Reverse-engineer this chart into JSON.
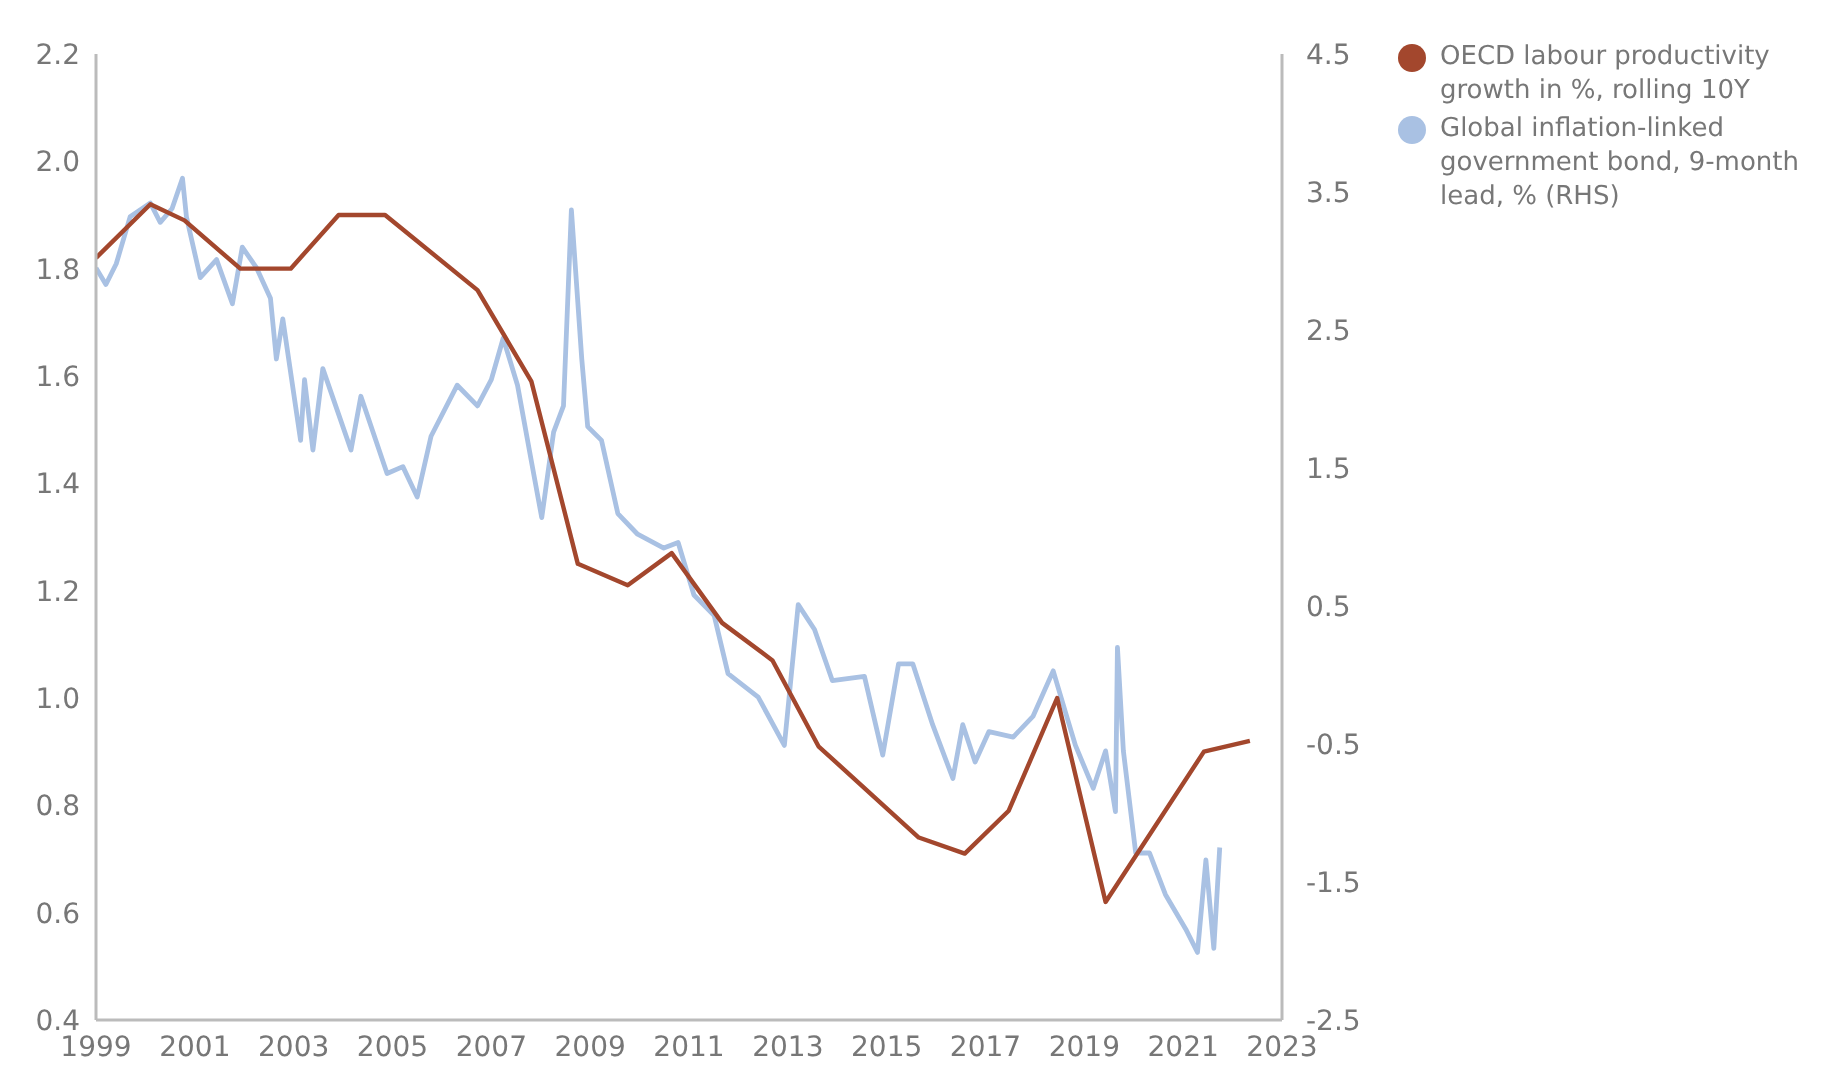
{
  "chart_data": {
    "type": "line",
    "xlim": [
      1999,
      2023
    ],
    "xticks": [
      1999,
      2001,
      2003,
      2005,
      2007,
      2009,
      2011,
      2013,
      2015,
      2017,
      2019,
      2021,
      2023
    ],
    "ylim": [
      0.4,
      2.2
    ],
    "yticks": [
      0.4,
      0.6,
      0.8,
      {
        "value": 1,
        "label": "1.0"
      },
      1.2,
      1.4,
      1.6,
      1.8,
      {
        "value": 2,
        "label": "2.0"
      },
      2.2
    ],
    "y2lim": [
      -2.5,
      4.5
    ],
    "y2ticks": [
      -2.5,
      -1.5,
      -0.5,
      0.5,
      1.5,
      2.5,
      3.5,
      4.5
    ],
    "grid": false,
    "legend": "top right",
    "marker": "none",
    "series": [
      {
        "name": "OECD labour productivity growth in %, rolling 10Y",
        "color": "#a3472d",
        "x": [
          1999.0,
          2000.1,
          2000.79,
          2001.92,
          2002.94,
          2003.91,
          2004.85,
          2006.72,
          2007.81,
          2008.75,
          2009.76,
          2010.65,
          2011.67,
          2012.69,
          2013.62,
          2015.65,
          2016.58,
          2017.47,
          2018.45,
          2019.43,
          2021.42,
          2022.35
        ],
        "values": [
          1.82,
          1.92,
          1.89,
          1.8,
          1.8,
          1.9,
          1.9,
          1.76,
          1.59,
          1.25,
          1.21,
          1.27,
          1.14,
          1.07,
          0.91,
          0.74,
          0.71,
          0.79,
          1.0,
          0.62,
          0.9,
          0.92
        ]
      },
      {
        "name": "Global inflation-linked government bond, 9-month lead, % (RHS)",
        "color": "#a9c1e3",
        "axis": "y2",
        "x": [
          1999.0,
          1999.2,
          1999.41,
          1999.69,
          2000.1,
          2000.3,
          2000.54,
          2000.75,
          2000.83,
          2001.11,
          2001.44,
          2001.76,
          2001.96,
          2002.25,
          2002.53,
          2002.65,
          2002.78,
          2003.14,
          2003.22,
          2003.39,
          2003.59,
          2004.16,
          2004.36,
          2004.89,
          2005.21,
          2005.5,
          2005.78,
          2006.31,
          2006.72,
          2007.0,
          2007.24,
          2007.53,
          2007.81,
          2008.02,
          2008.26,
          2008.46,
          2008.62,
          2008.83,
          2008.95,
          2009.23,
          2009.56,
          2009.96,
          2010.49,
          2010.78,
          2011.1,
          2011.51,
          2011.79,
          2012.4,
          2012.93,
          2013.21,
          2013.54,
          2013.9,
          2014.55,
          2014.92,
          2015.24,
          2015.53,
          2015.93,
          2016.34,
          2016.54,
          2016.79,
          2017.07,
          2017.56,
          2017.96,
          2018.37,
          2018.61,
          2018.82,
          2019.18,
          2019.43,
          2019.63,
          2019.67,
          2019.79,
          2020.04,
          2020.32,
          2020.64,
          2021.05,
          2021.29,
          2021.46,
          2021.62,
          2021.74
        ],
        "values": [
          2.95,
          2.83,
          2.98,
          3.32,
          3.42,
          3.28,
          3.38,
          3.6,
          3.32,
          2.88,
          3.01,
          2.69,
          3.1,
          2.95,
          2.73,
          2.29,
          2.58,
          1.7,
          2.14,
          1.63,
          2.22,
          1.63,
          2.02,
          1.46,
          1.51,
          1.29,
          1.73,
          2.1,
          1.95,
          2.14,
          2.44,
          2.1,
          1.55,
          1.14,
          1.76,
          1.95,
          3.37,
          2.29,
          1.8,
          1.7,
          1.17,
          1.02,
          0.92,
          0.96,
          0.58,
          0.43,
          0.01,
          -0.16,
          -0.51,
          0.51,
          0.33,
          -0.04,
          -0.01,
          -0.58,
          0.08,
          0.08,
          -0.36,
          -0.75,
          -0.36,
          -0.63,
          -0.41,
          -0.45,
          -0.3,
          0.03,
          -0.26,
          -0.51,
          -0.82,
          -0.55,
          -0.99,
          0.2,
          -0.55,
          -1.29,
          -1.29,
          -1.59,
          -1.84,
          -2.01,
          -1.34,
          -1.98,
          -1.25
        ]
      }
    ]
  }
}
